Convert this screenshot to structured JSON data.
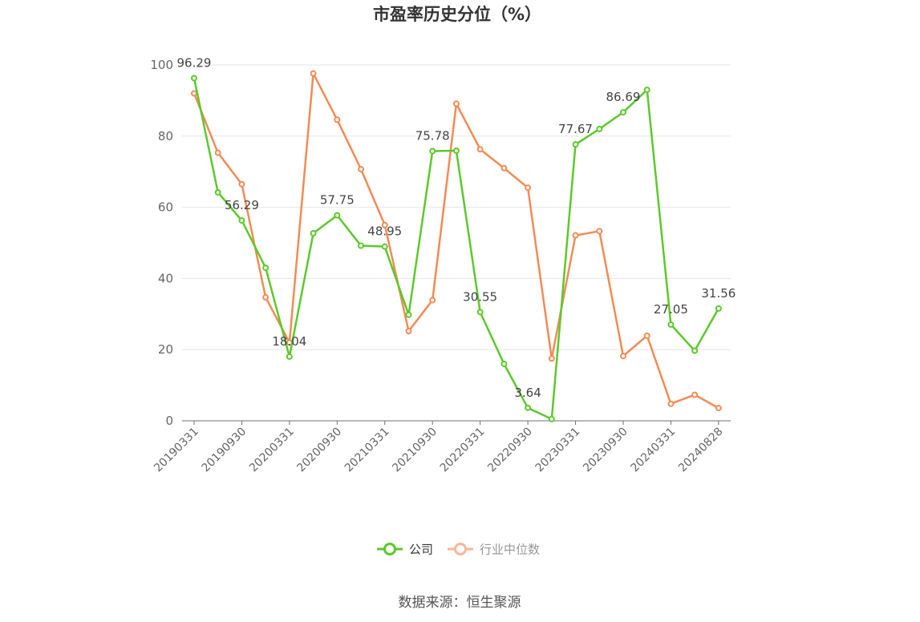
{
  "chart_data": {
    "type": "line",
    "title": "市盈率历史分位（%）",
    "source": "数据来源：恒生聚源",
    "ylim": [
      0,
      100
    ],
    "yticks": [
      0,
      20,
      40,
      60,
      80,
      100
    ],
    "grid": true,
    "legend_position": "bottom",
    "x": [
      "20190331",
      "20190630",
      "20190930",
      "20191231",
      "20200331",
      "20200630",
      "20200930",
      "20201231",
      "20210331",
      "20210630",
      "20210930",
      "20211231",
      "20220331",
      "20220630",
      "20220930",
      "20221231",
      "20230331",
      "20230630",
      "20230930",
      "20231231",
      "20240331",
      "20240630",
      "20240828"
    ],
    "x_tick_labels": [
      "20190331",
      "20190930",
      "20200331",
      "20200930",
      "20210331",
      "20210930",
      "20220331",
      "20220930",
      "20230331",
      "20230930",
      "20240331",
      "20240828"
    ],
    "series": [
      {
        "name": "公司",
        "color": "#5cc92a",
        "values": [
          96.29,
          64.2,
          56.29,
          43.0,
          18.04,
          52.7,
          57.75,
          49.2,
          48.95,
          29.8,
          75.78,
          75.9,
          30.55,
          16.0,
          3.64,
          0.5,
          77.67,
          82.0,
          86.69,
          93.0,
          27.05,
          19.7,
          31.56
        ],
        "labels": {
          "0": "96.29",
          "2": "56.29",
          "4": "18.04",
          "6": "57.75",
          "8": "48.95",
          "10": "75.78",
          "12": "30.55",
          "14": "3.64",
          "16": "77.67",
          "18": "86.69",
          "20": "27.05",
          "22": "31.56"
        }
      },
      {
        "name": "行业中位数",
        "color": "#f28b54",
        "legend_color": "#f7b79a",
        "values": [
          92.0,
          75.3,
          66.5,
          34.7,
          22.0,
          97.6,
          84.6,
          70.7,
          55.0,
          25.2,
          33.9,
          89.1,
          76.3,
          71.0,
          65.5,
          17.5,
          52.1,
          53.3,
          18.2,
          23.9,
          4.8,
          7.3,
          3.6
        ]
      }
    ]
  }
}
